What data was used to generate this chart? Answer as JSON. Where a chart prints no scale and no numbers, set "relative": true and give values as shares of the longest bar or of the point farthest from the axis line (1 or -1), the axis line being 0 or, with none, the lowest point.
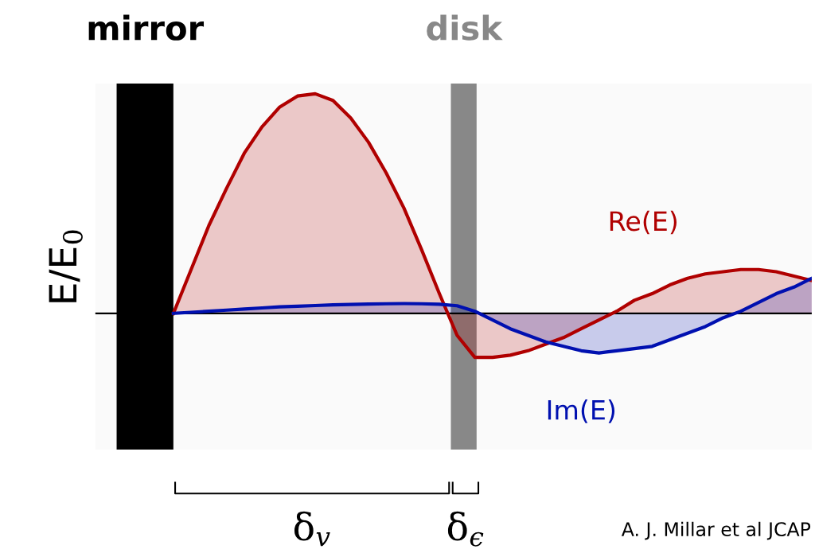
{
  "chart_data": {
    "type": "area",
    "relative": true,
    "ylabel": "E/E$_{0}$",
    "categories": [
      null,
      null,
      null,
      null,
      null,
      null,
      null,
      null,
      null,
      null,
      null,
      null,
      null,
      null,
      null,
      null,
      null,
      null,
      null,
      null,
      null,
      null,
      null,
      null,
      null,
      null,
      null,
      null,
      null,
      null,
      null,
      null,
      null,
      null,
      null,
      null,
      null
    ],
    "series": [
      {
        "name": "Re(E)",
        "color": "#b00000",
        "values": [
          0,
          0.2,
          0.4,
          0.57,
          0.73,
          0.85,
          0.94,
          0.99,
          1.0,
          0.97,
          0.89,
          0.78,
          0.64,
          0.48,
          0.29,
          0.09,
          -0.1,
          -0.2,
          -0.2,
          -0.19,
          -0.17,
          -0.14,
          -0.11,
          -0.07,
          -0.03,
          0.01,
          0.06,
          0.09,
          0.13,
          0.16,
          0.18,
          0.19,
          0.2,
          0.2,
          0.19,
          0.17,
          0.15
        ]
      },
      {
        "name": "Im(E)",
        "color": "#0010b0",
        "values": [
          0,
          0.005,
          0.01,
          0.015,
          0.02,
          0.025,
          0.03,
          0.033,
          0.036,
          0.039,
          0.041,
          0.043,
          0.044,
          0.045,
          0.044,
          0.042,
          0.035,
          0.01,
          -0.03,
          -0.07,
          -0.1,
          -0.13,
          -0.15,
          -0.17,
          -0.18,
          -0.17,
          -0.16,
          -0.15,
          -0.12,
          -0.09,
          -0.06,
          -0.02,
          0.01,
          0.05,
          0.09,
          0.12,
          0.16
        ]
      }
    ],
    "annotations": [
      "mirror",
      "disk",
      "δ$_{v}$",
      "δ$_{ϵ}$",
      "A. J. Millar et al JCAP"
    ]
  }
}
